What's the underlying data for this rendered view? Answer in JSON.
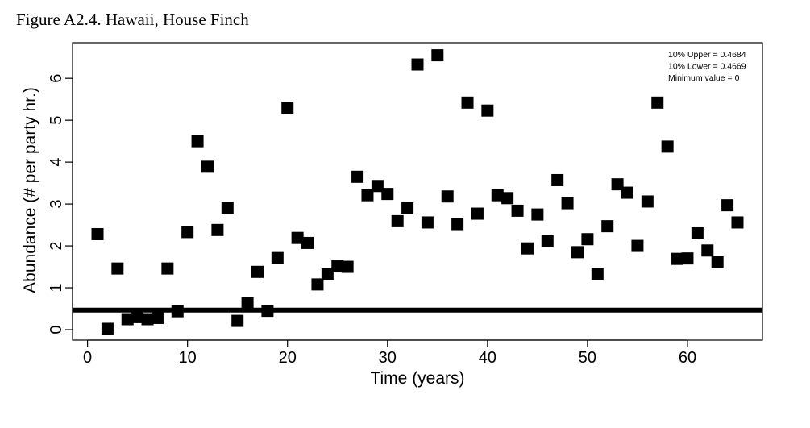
{
  "figure": {
    "title": "Figure A2.4. Hawaii, House Finch"
  },
  "chart_data": {
    "type": "scatter",
    "title": "Figure A2.4. Hawaii, House Finch",
    "xlabel": "Time (years)",
    "ylabel": "Abundance (# per party hr.)",
    "xlim": [
      -1.5,
      67.5
    ],
    "ylim": [
      -0.25,
      6.85
    ],
    "x_ticks": [
      0,
      10,
      20,
      30,
      40,
      50,
      60
    ],
    "y_ticks": [
      0,
      1,
      2,
      3,
      4,
      5,
      6
    ],
    "grid": false,
    "marker": "square",
    "marker_color": "#000000",
    "reference_line": {
      "y": 0.4677,
      "color": "#000000"
    },
    "annotations": [
      "10% Upper =  0.4684",
      "10% Lower =  0.4669",
      "Minimum value =  0"
    ],
    "points": [
      [
        1,
        2.28
      ],
      [
        2,
        0.02
      ],
      [
        3,
        1.46
      ],
      [
        4,
        0.25
      ],
      [
        5,
        0.3
      ],
      [
        6,
        0.25
      ],
      [
        7,
        0.28
      ],
      [
        8,
        1.46
      ],
      [
        9,
        0.44
      ],
      [
        10,
        2.33
      ],
      [
        11,
        4.5
      ],
      [
        12,
        3.89
      ],
      [
        13,
        2.38
      ],
      [
        14,
        2.91
      ],
      [
        15,
        0.21
      ],
      [
        16,
        0.63
      ],
      [
        17,
        1.38
      ],
      [
        18,
        0.45
      ],
      [
        19,
        1.71
      ],
      [
        20,
        5.3
      ],
      [
        21,
        2.19
      ],
      [
        22,
        2.07
      ],
      [
        23,
        1.08
      ],
      [
        24,
        1.32
      ],
      [
        25,
        1.51
      ],
      [
        26,
        1.5
      ],
      [
        27,
        3.65
      ],
      [
        28,
        3.21
      ],
      [
        29,
        3.43
      ],
      [
        30,
        3.24
      ],
      [
        31,
        2.59
      ],
      [
        32,
        2.9
      ],
      [
        33,
        6.33
      ],
      [
        34,
        2.56
      ],
      [
        35,
        6.55
      ],
      [
        36,
        3.18
      ],
      [
        37,
        2.52
      ],
      [
        38,
        5.42
      ],
      [
        39,
        2.77
      ],
      [
        40,
        5.23
      ],
      [
        41,
        3.21
      ],
      [
        42,
        3.14
      ],
      [
        43,
        2.84
      ],
      [
        44,
        1.94
      ],
      [
        45,
        2.75
      ],
      [
        46,
        2.11
      ],
      [
        47,
        3.57
      ],
      [
        48,
        3.02
      ],
      [
        49,
        1.85
      ],
      [
        50,
        2.16
      ],
      [
        51,
        1.33
      ],
      [
        52,
        2.47
      ],
      [
        53,
        3.47
      ],
      [
        54,
        3.27
      ],
      [
        55,
        2.0
      ],
      [
        56,
        3.06
      ],
      [
        57,
        5.42
      ],
      [
        58,
        4.37
      ],
      [
        59,
        1.69
      ],
      [
        60,
        1.7
      ],
      [
        61,
        2.3
      ],
      [
        62,
        1.89
      ],
      [
        63,
        1.61
      ],
      [
        64,
        2.97
      ],
      [
        65,
        2.56
      ]
    ]
  }
}
